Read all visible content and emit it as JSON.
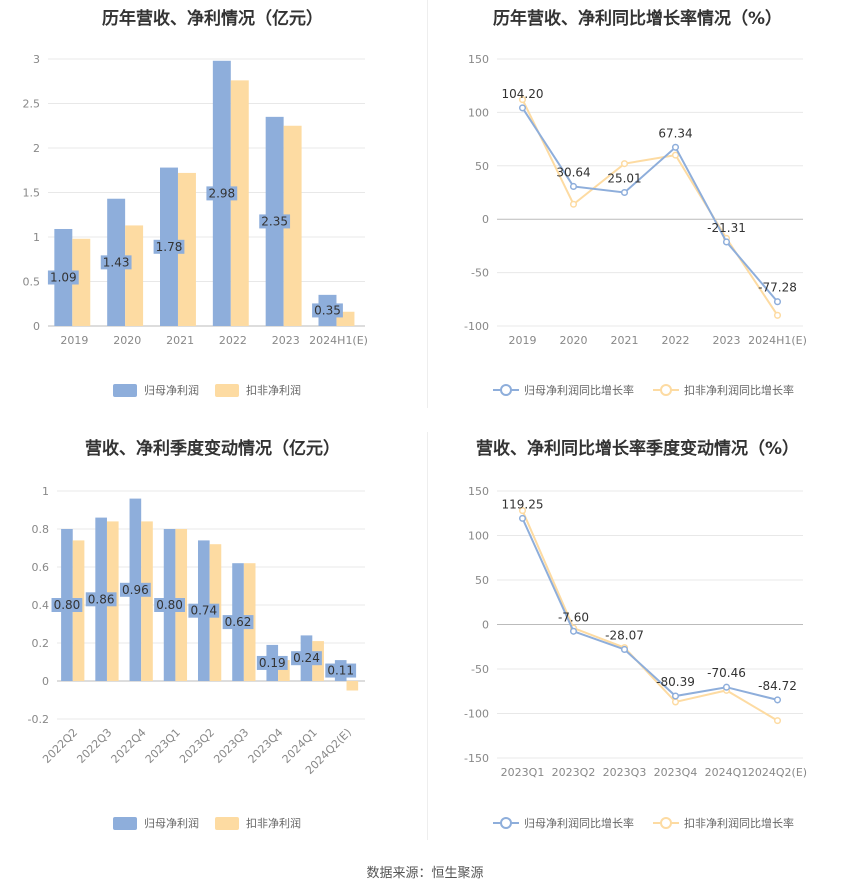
{
  "source_text": "数据来源：恒生聚源",
  "chart_data": [
    {
      "type": "bar",
      "title": "历年营收、净利情况（亿元）",
      "categories": [
        "2019",
        "2020",
        "2021",
        "2022",
        "2023",
        "2024H1(E)"
      ],
      "ylim": [
        0,
        3
      ],
      "yticks": [
        "0",
        "0.5",
        "1",
        "1.5",
        "2",
        "2.5",
        "3"
      ],
      "grid": true,
      "legend_position": "bottom",
      "series": [
        {
          "name": "归母净利润",
          "color": "#8eaedb",
          "values": [
            1.09,
            1.43,
            1.78,
            2.98,
            2.35,
            0.35
          ],
          "labels": [
            "1.09",
            "1.43",
            "1.78",
            "2.98",
            "2.35",
            "0.35"
          ]
        },
        {
          "name": "扣非净利润",
          "color": "#fddba2",
          "values": [
            0.98,
            1.13,
            1.72,
            2.76,
            2.25,
            0.16
          ]
        }
      ]
    },
    {
      "type": "line",
      "title": "历年营收、净利同比增长率情况（%）",
      "categories": [
        "2019",
        "2020",
        "2021",
        "2022",
        "2023",
        "2024H1(E)"
      ],
      "ylim": [
        -100,
        150
      ],
      "yticks": [
        "-100",
        "-50",
        "0",
        "50",
        "100",
        "150"
      ],
      "grid": true,
      "legend_position": "bottom",
      "series": [
        {
          "name": "归母净利润同比增长率",
          "color": "#8eaedb",
          "values": [
            104.2,
            30.64,
            25.01,
            67.34,
            -21.31,
            -77.28
          ],
          "labels": [
            "104.20",
            "30.64",
            "25.01",
            "67.34",
            "-21.31",
            "-77.28"
          ]
        },
        {
          "name": "扣非净利润同比增长率",
          "color": "#fddba2",
          "values": [
            112,
            14,
            52,
            60,
            -18,
            -90
          ]
        }
      ]
    },
    {
      "type": "bar",
      "title": "营收、净利季度变动情况（亿元）",
      "categories": [
        "2022Q2",
        "2022Q3",
        "2022Q4",
        "2023Q1",
        "2023Q2",
        "2023Q3",
        "2023Q4",
        "2024Q1",
        "2024Q2(E)"
      ],
      "ylim": [
        -0.2,
        1
      ],
      "yticks": [
        "-0.2",
        "0",
        "0.2",
        "0.4",
        "0.6",
        "0.8",
        "1"
      ],
      "grid": true,
      "legend_position": "bottom",
      "series": [
        {
          "name": "归母净利润",
          "color": "#8eaedb",
          "values": [
            0.8,
            0.86,
            0.96,
            0.8,
            0.74,
            0.62,
            0.19,
            0.24,
            0.11
          ],
          "labels": [
            "0.80",
            "0.86",
            "0.96",
            "0.80",
            "0.74",
            "0.62",
            "0.19",
            "0.24",
            "0.11"
          ]
        },
        {
          "name": "扣非净利润",
          "color": "#fddba2",
          "values": [
            0.74,
            0.84,
            0.84,
            0.8,
            0.72,
            0.62,
            0.11,
            0.21,
            -0.05
          ]
        }
      ]
    },
    {
      "type": "line",
      "title": "营收、净利同比增长率季度变动情况（%）",
      "categories": [
        "2023Q1",
        "2023Q2",
        "2023Q3",
        "2023Q4",
        "2024Q1",
        "2024Q2(E)"
      ],
      "ylim": [
        -150,
        150
      ],
      "yticks": [
        "-150",
        "-100",
        "-50",
        "0",
        "50",
        "100",
        "150"
      ],
      "grid": true,
      "legend_position": "bottom",
      "series": [
        {
          "name": "归母净利润同比增长率",
          "color": "#8eaedb",
          "values": [
            119.25,
            -7.6,
            -28.07,
            -80.39,
            -70.46,
            -84.72
          ],
          "labels": [
            "119.25",
            "-7.60",
            "-28.07",
            "-80.39",
            "-70.46",
            "-84.72"
          ]
        },
        {
          "name": "扣非净利润同比增长率",
          "color": "#fddba2",
          "values": [
            128,
            -4,
            -26,
            -87,
            -74,
            -108
          ]
        }
      ]
    }
  ]
}
